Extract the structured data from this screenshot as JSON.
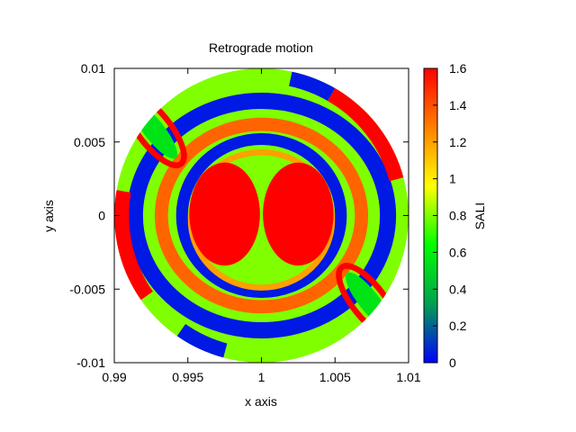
{
  "chart_data": {
    "type": "heatmap",
    "title": "Retrograde motion",
    "xlabel": "x axis",
    "ylabel": "y axis",
    "xlim": [
      0.99,
      1.01
    ],
    "ylim": [
      -0.01,
      0.01
    ],
    "x_ticks": [
      {
        "value": 0.99,
        "label": "0.99"
      },
      {
        "value": 0.995,
        "label": "0.995"
      },
      {
        "value": 1.0,
        "label": "1"
      },
      {
        "value": 1.005,
        "label": "1.005"
      },
      {
        "value": 1.01,
        "label": "1.01"
      }
    ],
    "y_ticks": [
      {
        "value": -0.01,
        "label": "-0.01"
      },
      {
        "value": -0.005,
        "label": "-0.005"
      },
      {
        "value": 0,
        "label": "0"
      },
      {
        "value": 0.005,
        "label": "0.005"
      },
      {
        "value": 0.01,
        "label": "0.01"
      }
    ],
    "colorbar": {
      "label": "SALI",
      "range": [
        0,
        1.6
      ],
      "ticks": [
        {
          "value": 0,
          "label": "0"
        },
        {
          "value": 0.2,
          "label": "0.2"
        },
        {
          "value": 0.4,
          "label": "0.4"
        },
        {
          "value": 0.6,
          "label": "0.6"
        },
        {
          "value": 0.8,
          "label": "0.8"
        },
        {
          "value": 1.0,
          "label": "1"
        },
        {
          "value": 1.2,
          "label": "1.2"
        },
        {
          "value": 1.4,
          "label": "1.4"
        },
        {
          "value": 1.6,
          "label": "1.6"
        }
      ],
      "palette": [
        "#0000ff",
        "#00a050",
        "#00ff00",
        "#ffff00",
        "#ff8000",
        "#ff0000"
      ]
    },
    "domain": {
      "center": [
        1.0,
        0.0
      ],
      "radius": 0.01
    },
    "regions": [
      {
        "shape": "disk",
        "center": [
          1.0,
          0.0
        ],
        "radius": 0.01,
        "sali": 0.8
      },
      {
        "shape": "ring",
        "center": [
          1.0,
          0.0
        ],
        "rx": 0.0086,
        "ry": 0.0078,
        "width": 0.0011,
        "sali": 0.05
      },
      {
        "shape": "ring",
        "center": [
          1.0,
          0.0
        ],
        "rx": 0.0068,
        "ry": 0.0062,
        "width": 0.0009,
        "sali": 1.35
      },
      {
        "shape": "ring",
        "center": [
          1.0,
          0.0
        ],
        "rx": 0.0054,
        "ry": 0.0052,
        "width": 0.0008,
        "sali": 0.05
      },
      {
        "shape": "ring",
        "center": [
          1.0,
          -0.0003
        ],
        "rx": 0.0048,
        "ry": 0.0046,
        "width": 0.0004,
        "sali": 1.2
      },
      {
        "shape": "ellipse",
        "center": [
          0.9975,
          0.0001
        ],
        "rx": 0.0024,
        "ry": 0.0035,
        "sali": 1.6
      },
      {
        "shape": "ellipse",
        "center": [
          1.0025,
          0.0001
        ],
        "rx": 0.0024,
        "ry": 0.0035,
        "sali": 1.6
      },
      {
        "shape": "ring",
        "center": [
          0.99275,
          0.0058
        ],
        "rx": 0.0011,
        "ry": 0.0029,
        "rotate": 38,
        "width": 0.0004,
        "sali": 1.6
      },
      {
        "shape": "ring",
        "center": [
          1.00725,
          -0.0058
        ],
        "rx": 0.0011,
        "ry": 0.0029,
        "rotate": 38,
        "width": 0.0004,
        "sali": 1.6
      },
      {
        "shape": "ellipse",
        "center": [
          0.9927,
          0.0058
        ],
        "rx": 0.0007,
        "ry": 0.0024,
        "rotate": 38,
        "sali": 0.55
      },
      {
        "shape": "ellipse",
        "center": [
          1.0073,
          -0.0058
        ],
        "rx": 0.0007,
        "ry": 0.0024,
        "rotate": 38,
        "sali": 0.55
      },
      {
        "shape": "edge",
        "from_angle": 15,
        "to_angle": 60,
        "sali": 1.6
      },
      {
        "shape": "edge",
        "from_angle": 170,
        "to_angle": 215,
        "sali": 1.6
      },
      {
        "shape": "edge",
        "from_angle": 235,
        "to_angle": 255,
        "sali": 0.05
      },
      {
        "shape": "edge",
        "from_angle": 60,
        "to_angle": 78,
        "sali": 0.05
      }
    ]
  }
}
